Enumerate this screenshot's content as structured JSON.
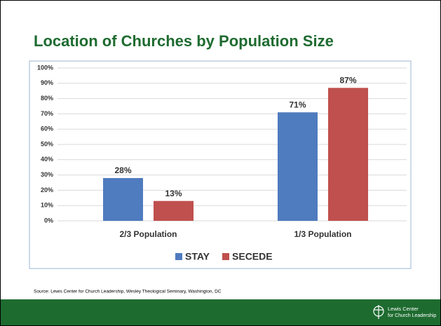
{
  "chart_data": {
    "type": "bar",
    "title": "Location of Churches by Population Size",
    "categories": [
      "2/3 Population",
      "1/3 Population"
    ],
    "series": [
      {
        "name": "STAY",
        "color": "#4f7bbf",
        "values": [
          28,
          71
        ],
        "value_labels": [
          "28%",
          "71%"
        ]
      },
      {
        "name": "SECEDE",
        "color": "#c0504d",
        "values": [
          13,
          87
        ],
        "value_labels": [
          "13%",
          "87%"
        ]
      }
    ],
    "ylim": [
      0,
      100
    ],
    "yticks": [
      {
        "value": 0,
        "label": "0%"
      },
      {
        "value": 10,
        "label": "10%"
      },
      {
        "value": 20,
        "label": "20%"
      },
      {
        "value": 30,
        "label": "30%"
      },
      {
        "value": 40,
        "label": "40%"
      },
      {
        "value": 50,
        "label": "50%"
      },
      {
        "value": 60,
        "label": "60%"
      },
      {
        "value": 70,
        "label": "70%"
      },
      {
        "value": 80,
        "label": "80%"
      },
      {
        "value": 90,
        "label": "90%"
      },
      {
        "value": 100,
        "label": "100%"
      }
    ],
    "grid": true,
    "legend": "bottom"
  },
  "source": "Source: Lewis Center for Church Leadership, Wesley Theological Seminary, Washington, DC",
  "logo": [
    "Lewis Center",
    "for Church Leadership"
  ]
}
